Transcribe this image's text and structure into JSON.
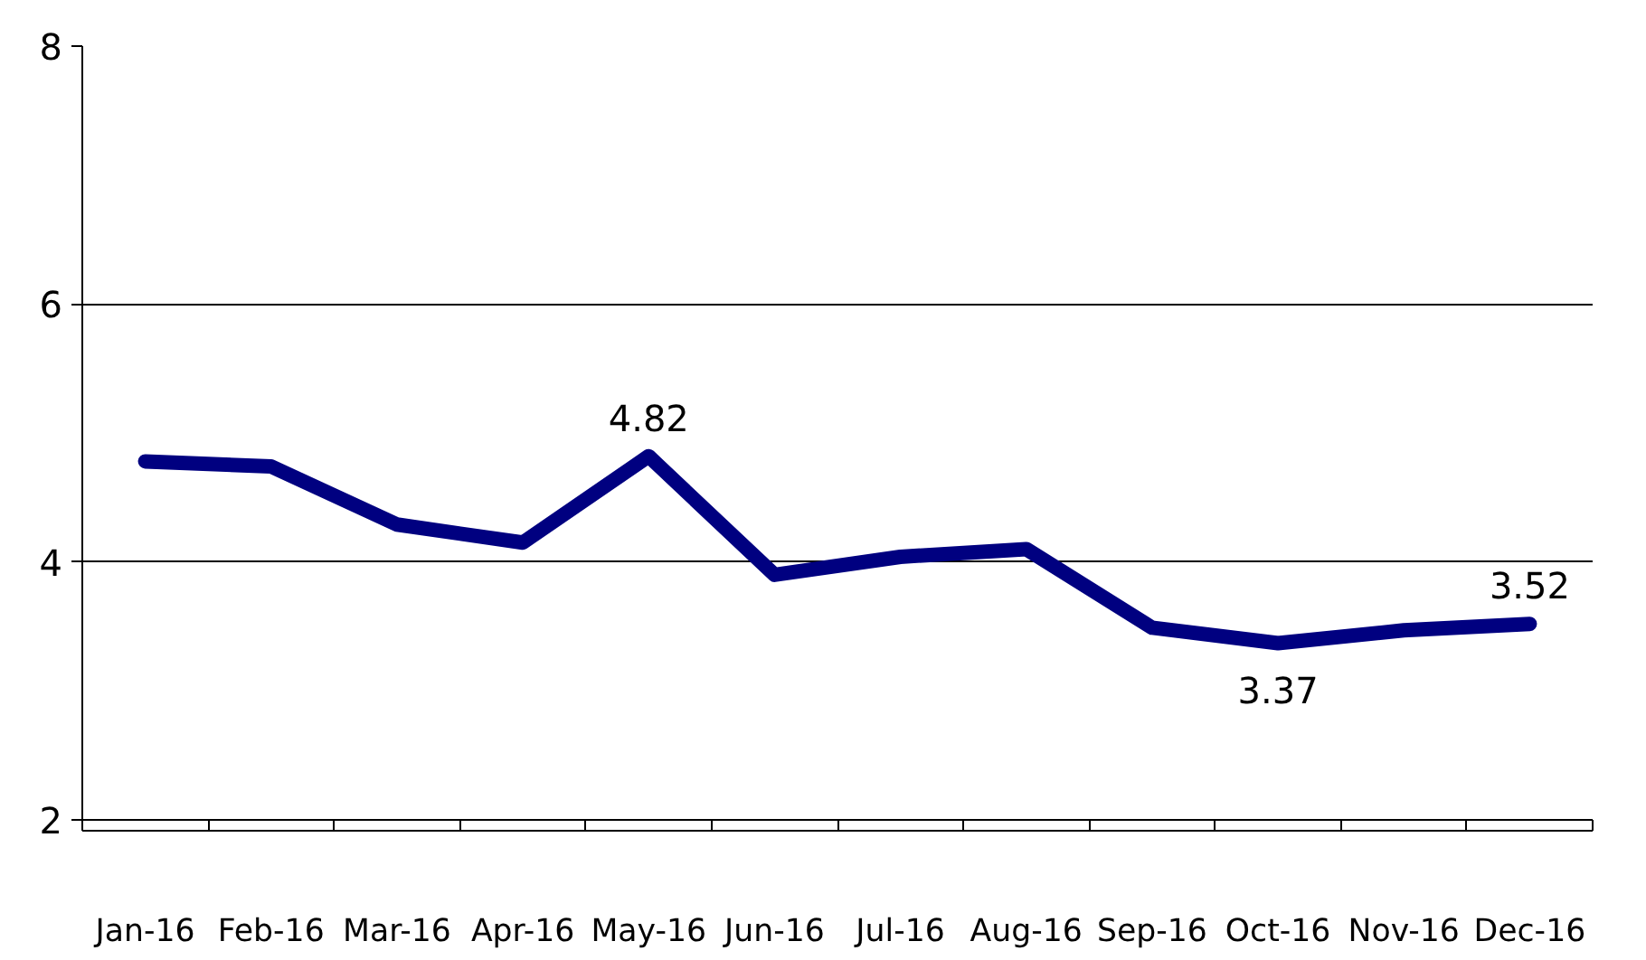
{
  "chart_data": {
    "type": "line",
    "categories": [
      "Jan-16",
      "Feb-16",
      "Mar-16",
      "Apr-16",
      "May-16",
      "Jun-16",
      "Jul-16",
      "Aug-16",
      "Sep-16",
      "Oct-16",
      "Nov-16",
      "Dec-16"
    ],
    "series": [
      {
        "color": "#000080",
        "values": [
          4.78,
          4.74,
          4.29,
          4.15,
          4.82,
          3.9,
          4.04,
          4.1,
          3.49,
          3.37,
          3.47,
          3.52
        ],
        "value_labels": [
          null,
          null,
          null,
          null,
          "4.82",
          null,
          null,
          null,
          null,
          "3.37",
          null,
          "3.52"
        ]
      }
    ],
    "ylim": [
      2,
      8
    ],
    "yticks": [
      2,
      4,
      6,
      8
    ],
    "grid": "y",
    "marker": "none",
    "line_style": "solid"
  }
}
